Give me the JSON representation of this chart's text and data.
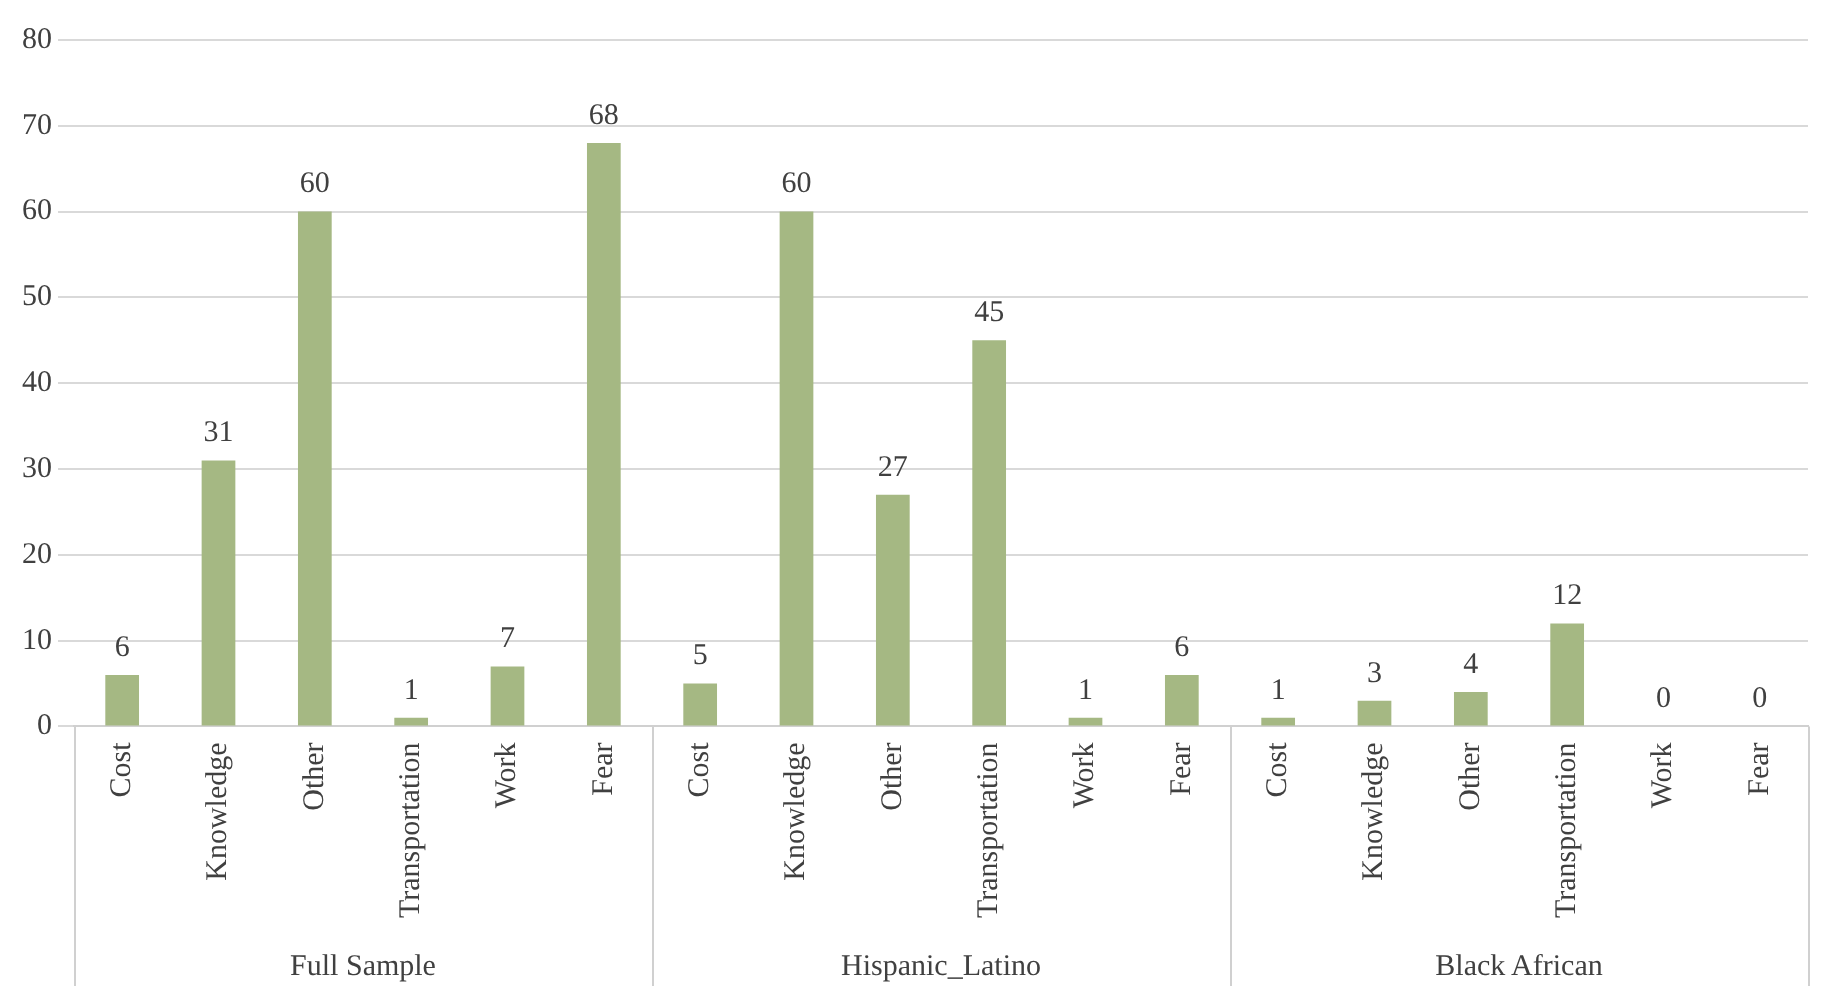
{
  "chart_data": {
    "type": "bar",
    "categories": [
      "Cost",
      "Knowledge",
      "Other",
      "Transportation",
      "Work",
      "Fear",
      "Cost",
      "Knowledge",
      "Other",
      "Transportation",
      "Work",
      "Fear",
      "Cost",
      "Knowledge",
      "Other",
      "Transportation",
      "Work",
      "Fear"
    ],
    "values": [
      6,
      31,
      60,
      1,
      7,
      68,
      5,
      60,
      27,
      45,
      1,
      6,
      1,
      3,
      4,
      12,
      0,
      0
    ],
    "color": "#a5b883",
    "annotations": [
      "Full Sample",
      "Hispanic_Latino",
      "Black African"
    ],
    "ylim": [
      0,
      80
    ],
    "yticks": [
      0,
      10,
      20,
      30,
      40,
      50,
      60,
      70,
      80
    ],
    "grid": "y",
    "legend": false,
    "data_labels": true
  }
}
